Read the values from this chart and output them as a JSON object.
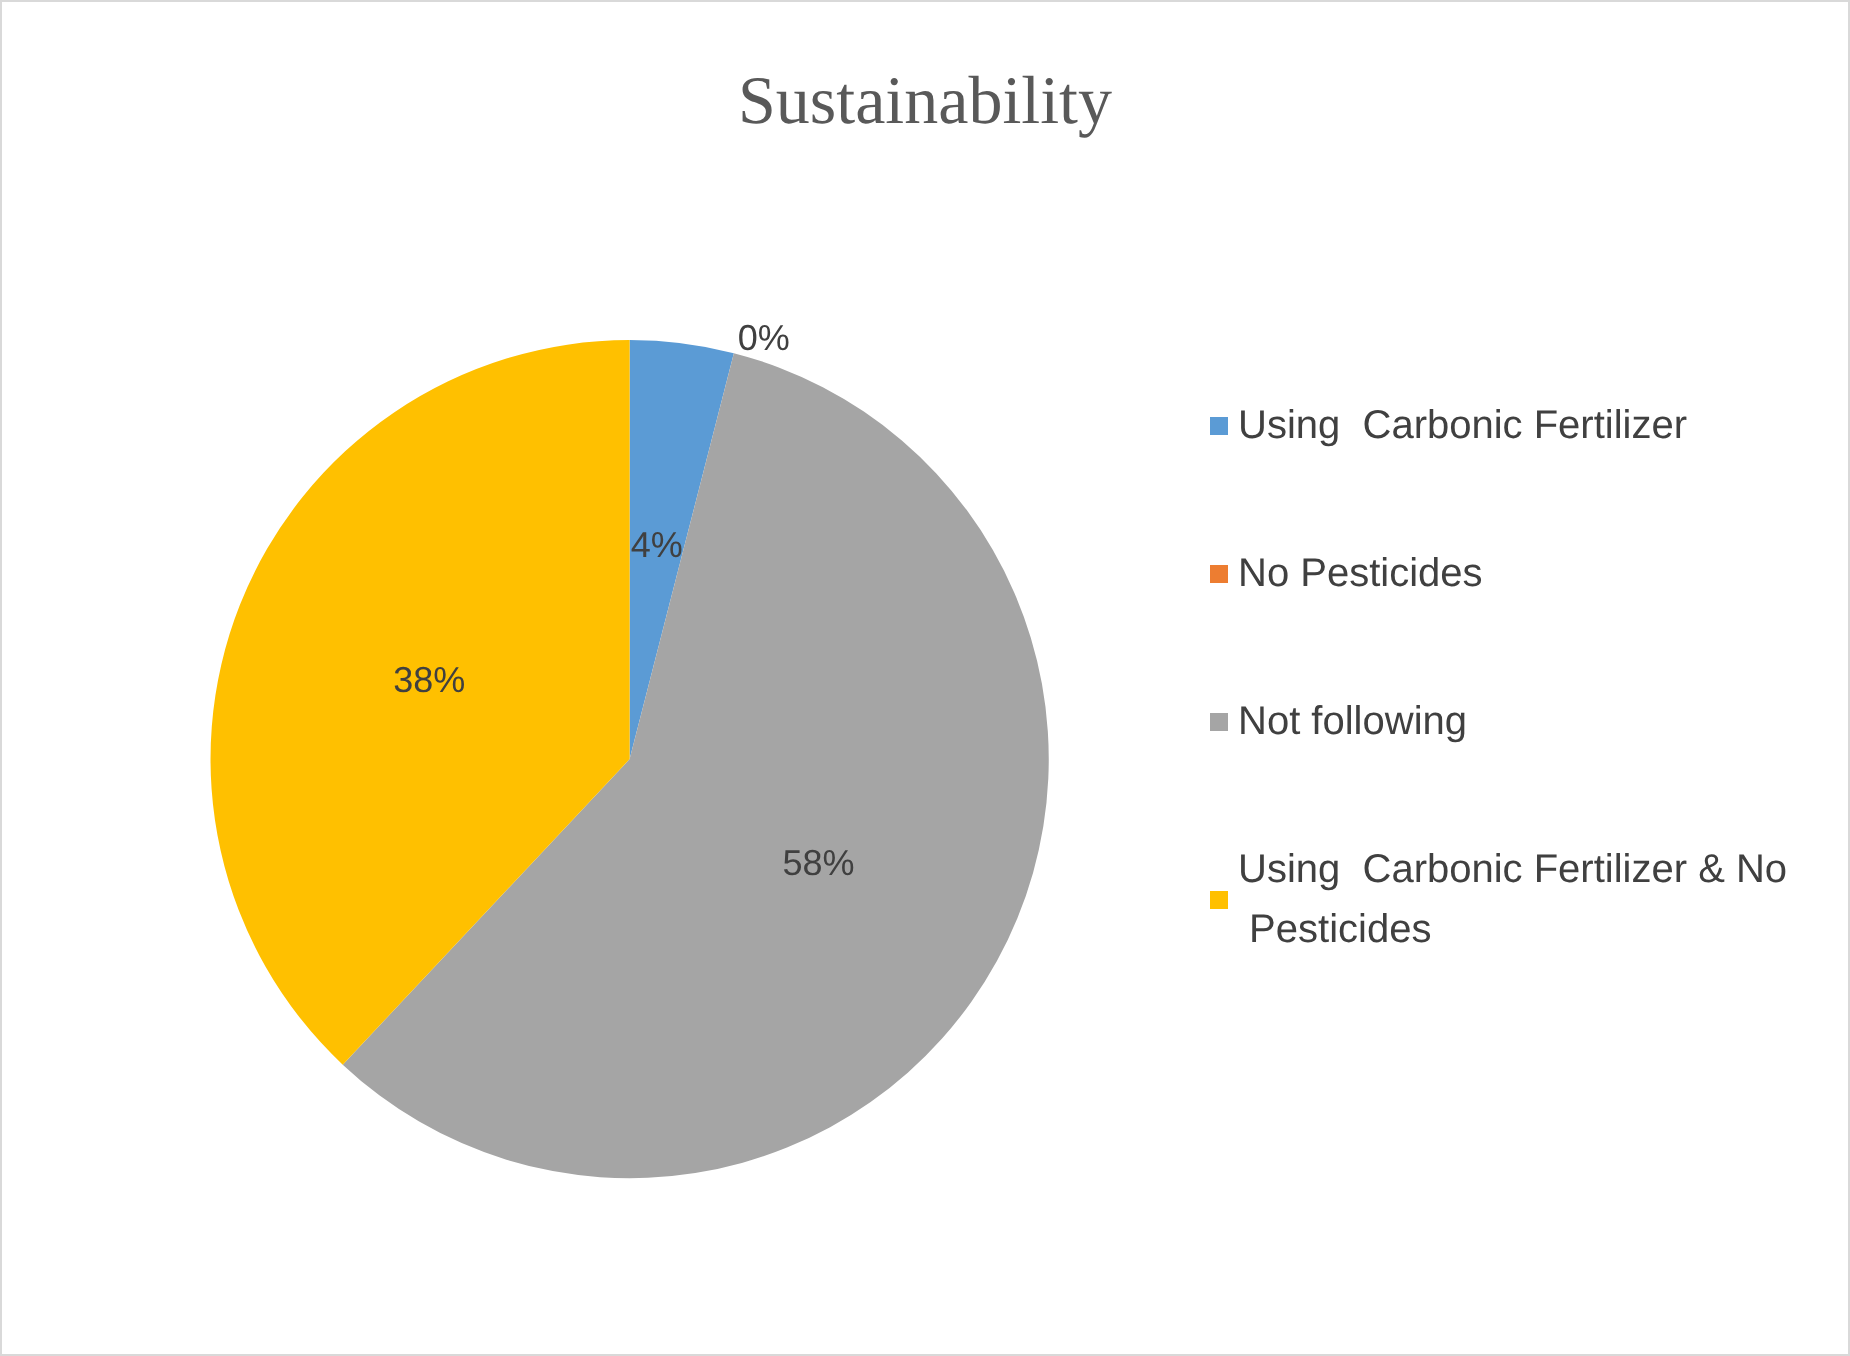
{
  "chart_data": {
    "type": "pie",
    "title": "Sustainability",
    "categories": [
      "Using  Carbonic Fertilizer",
      "No Pesticides",
      "Not following",
      "Using  Carbonic Fertilizer & No Pesticides"
    ],
    "values": [
      4,
      0,
      58,
      38
    ],
    "value_labels": [
      "4%",
      "0%",
      "58%",
      "38%"
    ],
    "colors": [
      "#5b9bd5",
      "#ed7d31",
      "#a5a5a5",
      "#ffc000"
    ],
    "legend": "right"
  }
}
